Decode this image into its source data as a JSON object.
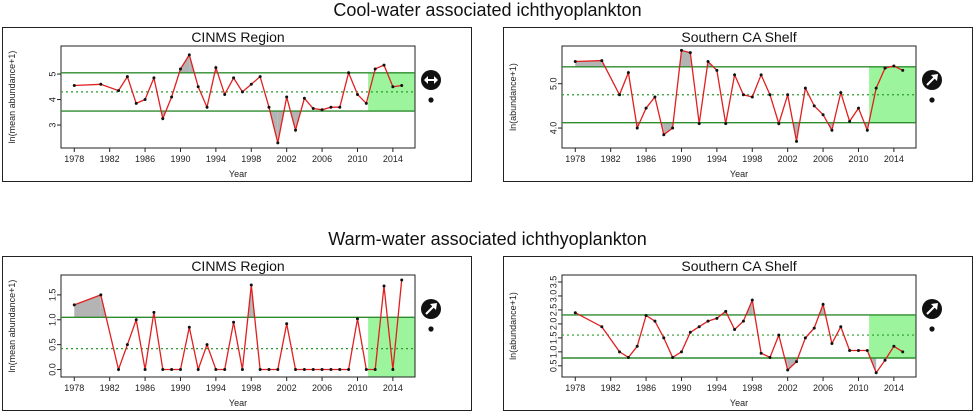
{
  "titles": {
    "cool": "Cool-water associated ichthyoplankton",
    "warm": "Warm-water associated ichthyoplankton"
  },
  "colors": {
    "line": "#e02020",
    "mean": "#2e9a2e",
    "sd": "#2e8b2e",
    "shade": "#b4b4b4",
    "recent": "#9cf59c",
    "frame": "#222222"
  },
  "chart_data": [
    {
      "type": "line",
      "title": "CINMS Region",
      "xlabel": "Year",
      "ylabel": "ln(mean abundance+1)",
      "xlim": [
        1976.5,
        2016.5
      ],
      "ylim": [
        2.1,
        6.1
      ],
      "xticks": [
        1978,
        1982,
        1986,
        1990,
        1994,
        1998,
        2002,
        2006,
        2010,
        2014
      ],
      "yticks": [
        3,
        4,
        5
      ],
      "mean": 4.3,
      "upper": 5.05,
      "lower": 3.55,
      "recent_start": 2011.2,
      "trend_icon": "diamond-arrows-icon",
      "x": [
        1978,
        1981,
        1983,
        1984,
        1985,
        1986,
        1987,
        1988,
        1989,
        1990,
        1991,
        1992,
        1993,
        1994,
        1995,
        1996,
        1997,
        1998,
        1999,
        2000,
        2001,
        2002,
        2003,
        2004,
        2005,
        2006,
        2007,
        2008,
        2009,
        2010,
        2011,
        2012,
        2013,
        2014,
        2015
      ],
      "y": [
        4.55,
        4.6,
        4.35,
        4.9,
        3.85,
        4.0,
        4.85,
        3.25,
        4.1,
        5.2,
        5.75,
        4.5,
        3.7,
        5.25,
        4.2,
        4.85,
        4.3,
        4.6,
        4.9,
        3.7,
        2.3,
        4.1,
        2.8,
        4.05,
        3.65,
        3.6,
        3.7,
        3.7,
        5.05,
        4.2,
        3.85,
        5.2,
        5.35,
        4.5,
        4.55
      ]
    },
    {
      "type": "line",
      "title": "Southern CA  Shelf",
      "xlabel": "Year",
      "ylabel": "ln(abundance+1)",
      "xlim": [
        1976.5,
        2016.5
      ],
      "ylim": [
        3.55,
        5.85
      ],
      "xticks": [
        1978,
        1982,
        1986,
        1990,
        1994,
        1998,
        2002,
        2006,
        2010,
        2014
      ],
      "yticks": [
        4.0,
        5.0
      ],
      "ytick_labels": [
        "4.0",
        "5.0"
      ],
      "mean": 4.75,
      "upper": 5.38,
      "lower": 4.12,
      "recent_start": 2011.2,
      "trend_icon": "up-arrow-icon",
      "x": [
        1978,
        1981,
        1983,
        1984,
        1985,
        1986,
        1987,
        1988,
        1989,
        1990,
        1991,
        1992,
        1993,
        1994,
        1995,
        1996,
        1997,
        1998,
        1999,
        2000,
        2001,
        2002,
        2003,
        2004,
        2005,
        2006,
        2007,
        2008,
        2009,
        2010,
        2011,
        2012,
        2013,
        2014,
        2015
      ],
      "y": [
        5.5,
        5.52,
        4.75,
        5.25,
        4.0,
        4.45,
        4.7,
        3.85,
        4.0,
        5.75,
        5.7,
        4.1,
        5.5,
        5.3,
        4.1,
        5.2,
        4.75,
        4.7,
        5.2,
        4.75,
        4.1,
        4.75,
        3.7,
        4.9,
        4.5,
        4.3,
        3.95,
        4.8,
        4.15,
        4.45,
        3.95,
        4.9,
        5.35,
        5.4,
        5.3
      ]
    },
    {
      "type": "line",
      "title": "CINMS Region",
      "xlabel": "Year",
      "ylabel": "ln(mean abundance+1)",
      "xlim": [
        1976.5,
        2016.5
      ],
      "ylim": [
        -0.15,
        1.9
      ],
      "xticks": [
        1978,
        1982,
        1986,
        1990,
        1994,
        1998,
        2002,
        2006,
        2010,
        2014
      ],
      "yticks": [
        0.0,
        0.5,
        1.0,
        1.5
      ],
      "ytick_labels": [
        "0.0",
        "0.5",
        "1.0",
        "1.5"
      ],
      "mean": 0.42,
      "upper": 1.05,
      "lower": null,
      "recent_start": 2011.2,
      "trend_icon": "up-arrow-icon",
      "x": [
        1978,
        1981,
        1983,
        1984,
        1985,
        1986,
        1987,
        1988,
        1989,
        1990,
        1991,
        1992,
        1993,
        1994,
        1995,
        1996,
        1997,
        1998,
        1999,
        2000,
        2001,
        2002,
        2003,
        2004,
        2005,
        2006,
        2007,
        2008,
        2009,
        2010,
        2011,
        2012,
        2013,
        2014,
        2015
      ],
      "y": [
        1.3,
        1.5,
        0.0,
        0.5,
        1.0,
        0.0,
        1.15,
        0.0,
        0.0,
        0.0,
        0.85,
        0.0,
        0.5,
        0.0,
        0.0,
        0.95,
        0.0,
        1.7,
        0.0,
        0.0,
        0.0,
        0.92,
        0.0,
        0.0,
        0.0,
        0.0,
        0.0,
        0.0,
        0.0,
        1.02,
        0.0,
        0.0,
        1.68,
        0.0,
        1.8
      ]
    },
    {
      "type": "line",
      "title": "Southern CA  Shelf",
      "xlabel": "Year",
      "ylabel": "ln(abundance+1)",
      "xlim": [
        1976.5,
        2016.5
      ],
      "ylim": [
        0.1,
        3.75
      ],
      "xticks": [
        1978,
        1982,
        1986,
        1990,
        1994,
        1998,
        2002,
        2006,
        2010,
        2014
      ],
      "yticks": [
        0.5,
        1.0,
        1.5,
        2.0,
        2.5,
        3.0,
        3.5
      ],
      "ytick_labels": [
        "0.5",
        "1.0",
        "1.5",
        "2.0",
        "2.5",
        "3.0",
        "3.5"
      ],
      "mean": 1.6,
      "upper": 2.32,
      "lower": 0.78,
      "recent_start": 2011.2,
      "trend_icon": "up-arrow-icon",
      "x": [
        1978,
        1981,
        1983,
        1984,
        1985,
        1986,
        1987,
        1988,
        1989,
        1990,
        1991,
        1992,
        1993,
        1994,
        1995,
        1996,
        1997,
        1998,
        1999,
        2000,
        2001,
        2002,
        2003,
        2004,
        2005,
        2006,
        2007,
        2008,
        2009,
        2010,
        2011,
        2012,
        2013,
        2014,
        2015
      ],
      "y": [
        2.4,
        1.9,
        1.0,
        0.8,
        1.2,
        2.3,
        2.1,
        1.5,
        0.8,
        1.0,
        1.7,
        1.9,
        2.1,
        2.2,
        2.45,
        1.8,
        2.1,
        2.85,
        0.95,
        0.8,
        1.6,
        0.35,
        0.65,
        1.5,
        1.85,
        2.7,
        1.3,
        1.9,
        1.05,
        1.05,
        1.05,
        0.25,
        0.7,
        1.2,
        1.0
      ]
    }
  ]
}
